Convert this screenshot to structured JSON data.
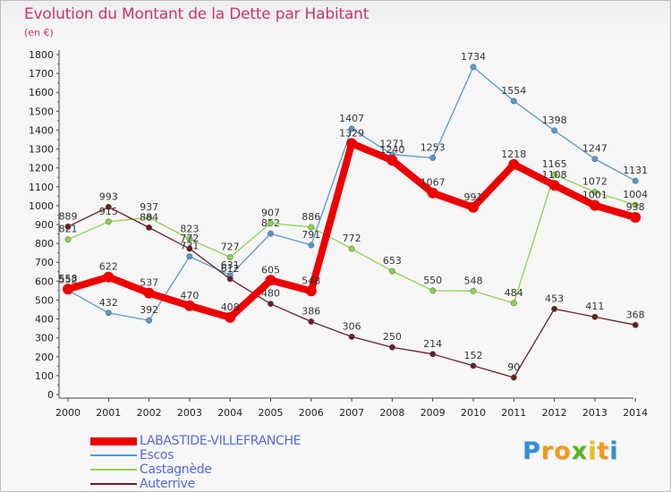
{
  "title": "Evolution du Montant de la Dette par Habitant",
  "unit": "(en €)",
  "logo": {
    "letters": [
      "P",
      "r",
      "o",
      "x",
      "i",
      "t",
      "i"
    ],
    "colors": [
      "#2f8fd8",
      "#f29a1b",
      "#f29a1b",
      "#5ab31e",
      "#e3c21a",
      "#f29a1b",
      "#2f8fd8"
    ]
  },
  "chart_data": {
    "type": "line",
    "title": "Evolution du Montant de la Dette par Habitant",
    "ylabel": "(en €)",
    "ylim": [
      0,
      1800
    ],
    "yticks": [
      0,
      100,
      200,
      300,
      400,
      500,
      600,
      700,
      800,
      900,
      1000,
      1100,
      1200,
      1300,
      1400,
      1500,
      1600,
      1700,
      1800
    ],
    "categories": [
      "2000",
      "2001",
      "2002",
      "2003",
      "2004",
      "2005",
      "2006",
      "2007",
      "2008",
      "2009",
      "2010",
      "2011",
      "2012",
      "2013",
      "2014"
    ],
    "grid": false,
    "legend_position": "bottom-left",
    "series": [
      {
        "name": "Escos",
        "color": "#5599cc",
        "values": [
          552,
          432,
          392,
          731,
          631,
          852,
          791,
          1407,
          1271,
          1253,
          1734,
          1554,
          1398,
          1247,
          1131
        ]
      },
      {
        "name": "Castagnède",
        "color": "#8fd14f",
        "values": [
          821,
          915,
          937,
          823,
          727,
          907,
          886,
          772,
          653,
          550,
          548,
          484,
          1165,
          1072,
          1004
        ]
      },
      {
        "name": "Auterrive",
        "color": "#6b1f26",
        "values": [
          889,
          993,
          884,
          772,
          612,
          480,
          386,
          306,
          250,
          214,
          152,
          90,
          453,
          411,
          368
        ]
      },
      {
        "name": "LABASTIDE-VILLEFRANCHE",
        "color": "#ee0000",
        "values": [
          558,
          622,
          537,
          470,
          408,
          605,
          548,
          1329,
          1240,
          1067,
          991,
          1218,
          1108,
          1001,
          938
        ]
      }
    ],
    "legend_order": [
      "LABASTIDE-VILLEFRANCHE",
      "Escos",
      "Castagnède",
      "Auterrive"
    ]
  }
}
